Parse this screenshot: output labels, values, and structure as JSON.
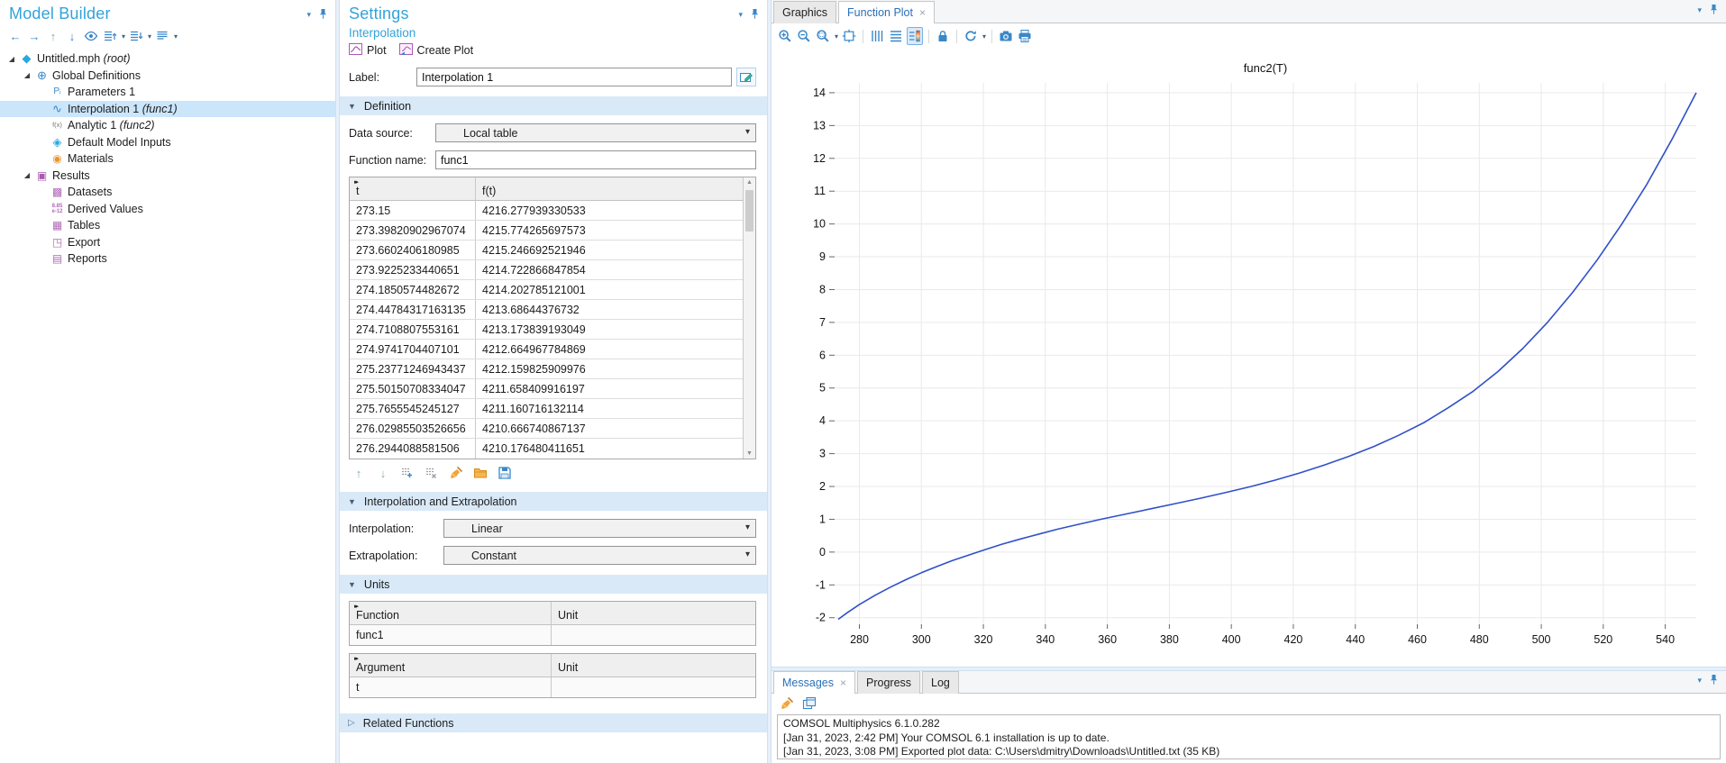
{
  "colors": {
    "accent_blue": "#3a87c8",
    "title_blue": "#33a3da",
    "selection": "#cbe6fb",
    "section_bg": "#d9e9f8",
    "results_plum": "#b069b8",
    "tool_orange": "#f3a33a",
    "curve_blue": "#3050c8"
  },
  "model_builder": {
    "title": "Model Builder",
    "toolbar": [
      "nav-back",
      "nav-forward",
      "move-up",
      "move-down",
      "show",
      "expand-up*",
      "expand-down*",
      "columns*"
    ],
    "tree": [
      {
        "label": "Untitled.mph",
        "suffix": "(root)",
        "icon": "model",
        "indent": 0,
        "expandable": true
      },
      {
        "label": "Global Definitions",
        "suffix": "",
        "icon": "globe",
        "indent": 1,
        "expandable": true
      },
      {
        "label": "Parameters 1",
        "suffix": "",
        "icon": "parameters",
        "indent": 2
      },
      {
        "label": "Interpolation 1",
        "suffix": "(func1)",
        "icon": "interpolation",
        "indent": 2,
        "selected": true
      },
      {
        "label": "Analytic 1",
        "suffix": "(func2)",
        "icon": "analytic",
        "indent": 2
      },
      {
        "label": "Default Model Inputs",
        "suffix": "",
        "icon": "inputs",
        "indent": 2
      },
      {
        "label": "Materials",
        "suffix": "",
        "icon": "materials",
        "indent": 2
      },
      {
        "label": "Results",
        "suffix": "",
        "icon": "results",
        "indent": 1,
        "expandable": true
      },
      {
        "label": "Datasets",
        "suffix": "",
        "icon": "datasets",
        "indent": 2
      },
      {
        "label": "Derived Values",
        "suffix": "",
        "icon": "derived",
        "indent": 2
      },
      {
        "label": "Tables",
        "suffix": "",
        "icon": "tables",
        "indent": 2
      },
      {
        "label": "Export",
        "suffix": "",
        "icon": "export",
        "indent": 2
      },
      {
        "label": "Reports",
        "suffix": "",
        "icon": "reports",
        "indent": 2
      }
    ]
  },
  "settings": {
    "title": "Settings",
    "subtitle": "Interpolation",
    "actions": {
      "plot_label": "Plot",
      "create_plot_label": "Create Plot"
    },
    "label_field": {
      "label": "Label:",
      "value": "Interpolation 1"
    },
    "definition": {
      "header": "Definition",
      "data_source_label": "Data source:",
      "data_source_value": "Local table",
      "function_name_label": "Function name:",
      "function_name_value": "func1",
      "table": {
        "columns": [
          "t",
          "f(t)"
        ],
        "rows": [
          [
            "273.15",
            "4216.277939330533"
          ],
          [
            "273.39820902967074",
            "4215.774265697573"
          ],
          [
            "273.6602406180985",
            "4215.246692521946"
          ],
          [
            "273.9225233440651",
            "4214.722866847854"
          ],
          [
            "274.1850574482672",
            "4214.202785121001"
          ],
          [
            "274.44784317163135",
            "4213.68644376732"
          ],
          [
            "274.7108807553161",
            "4213.173839193049"
          ],
          [
            "274.9741704407101",
            "4212.664967784869"
          ],
          [
            "275.23771246943437",
            "4212.159825909976"
          ],
          [
            "275.50150708334047",
            "4211.658409916197"
          ],
          [
            "275.7655545245127",
            "4211.160716132114"
          ],
          [
            "276.02985503526656",
            "4210.666740867137"
          ],
          [
            "276.2944088581506",
            "4210.176480411651"
          ]
        ]
      },
      "table_toolbar": [
        "row-up",
        "row-down",
        "add-row",
        "delete-row",
        "clear-table",
        "load-table",
        "save-table"
      ]
    },
    "interpolation_section": {
      "header": "Interpolation and Extrapolation",
      "interpolation_label": "Interpolation:",
      "interpolation_value": "Linear",
      "extrapolation_label": "Extrapolation:",
      "extrapolation_value": "Constant"
    },
    "units_section": {
      "header": "Units",
      "function_table": {
        "columns": [
          "Function",
          "Unit"
        ],
        "rows": [
          [
            "func1",
            ""
          ]
        ]
      },
      "argument_table": {
        "columns": [
          "Argument",
          "Unit"
        ],
        "rows": [
          [
            "t",
            ""
          ]
        ]
      }
    },
    "related_section": {
      "header": "Related Functions"
    }
  },
  "graphics": {
    "tabs": [
      {
        "label": "Graphics",
        "active": false
      },
      {
        "label": "Function Plot",
        "active": true,
        "closable": true
      }
    ],
    "toolbar": [
      "zoom-in",
      "zoom-out",
      "zoom-box*",
      "zoom-extents",
      "|",
      "x-grid",
      "y-grid",
      "legend!",
      "|",
      "lock",
      "|",
      "refresh*",
      "|",
      "camera",
      "print"
    ]
  },
  "chart_data": {
    "type": "line",
    "title": "func2(T)",
    "xlabel": "",
    "ylabel": "",
    "xlim": [
      272,
      550
    ],
    "ylim": [
      -2.2,
      14.3
    ],
    "xticks": [
      280,
      300,
      320,
      340,
      360,
      380,
      400,
      420,
      440,
      460,
      480,
      500,
      520,
      540
    ],
    "yticks": [
      -2,
      -1,
      0,
      1,
      2,
      3,
      4,
      5,
      6,
      7,
      8,
      9,
      10,
      11,
      12,
      13,
      14
    ],
    "grid": true,
    "legend_position": "none",
    "series": [
      {
        "name": "func2",
        "color": "#3050c8",
        "x": [
          273.15,
          276,
          280,
          285,
          290,
          295,
          300,
          305,
          310,
          315,
          320,
          326,
          332,
          338,
          344,
          350,
          358,
          366,
          374,
          382,
          390,
          398,
          406,
          414,
          422,
          430,
          438,
          446,
          454,
          462,
          470,
          478,
          486,
          494,
          502,
          510,
          518,
          526,
          534,
          542,
          550
        ],
        "y": [
          -2.05,
          -1.85,
          -1.6,
          -1.32,
          -1.07,
          -0.84,
          -0.63,
          -0.44,
          -0.26,
          -0.1,
          0.06,
          0.24,
          0.4,
          0.55,
          0.7,
          0.83,
          1.0,
          1.16,
          1.32,
          1.48,
          1.64,
          1.81,
          1.99,
          2.19,
          2.41,
          2.65,
          2.92,
          3.22,
          3.56,
          3.94,
          4.4,
          4.9,
          5.5,
          6.2,
          7.0,
          7.9,
          8.9,
          10.0,
          11.2,
          12.55,
          14.0
        ]
      }
    ]
  },
  "messages": {
    "tabs": [
      {
        "label": "Messages",
        "active": true,
        "closable": true
      },
      {
        "label": "Progress",
        "active": false
      },
      {
        "label": "Log",
        "active": false
      }
    ],
    "toolbar": [
      "clear-messages",
      "copy-messages"
    ],
    "lines": [
      "COMSOL Multiphysics 6.1.0.282",
      "[Jan 31, 2023, 2:42 PM] Your COMSOL 6.1 installation is up to date.",
      "[Jan 31, 2023, 3:08 PM] Exported plot data: C:\\Users\\dmitry\\Downloads\\Untitled.txt (35 KB)"
    ]
  }
}
